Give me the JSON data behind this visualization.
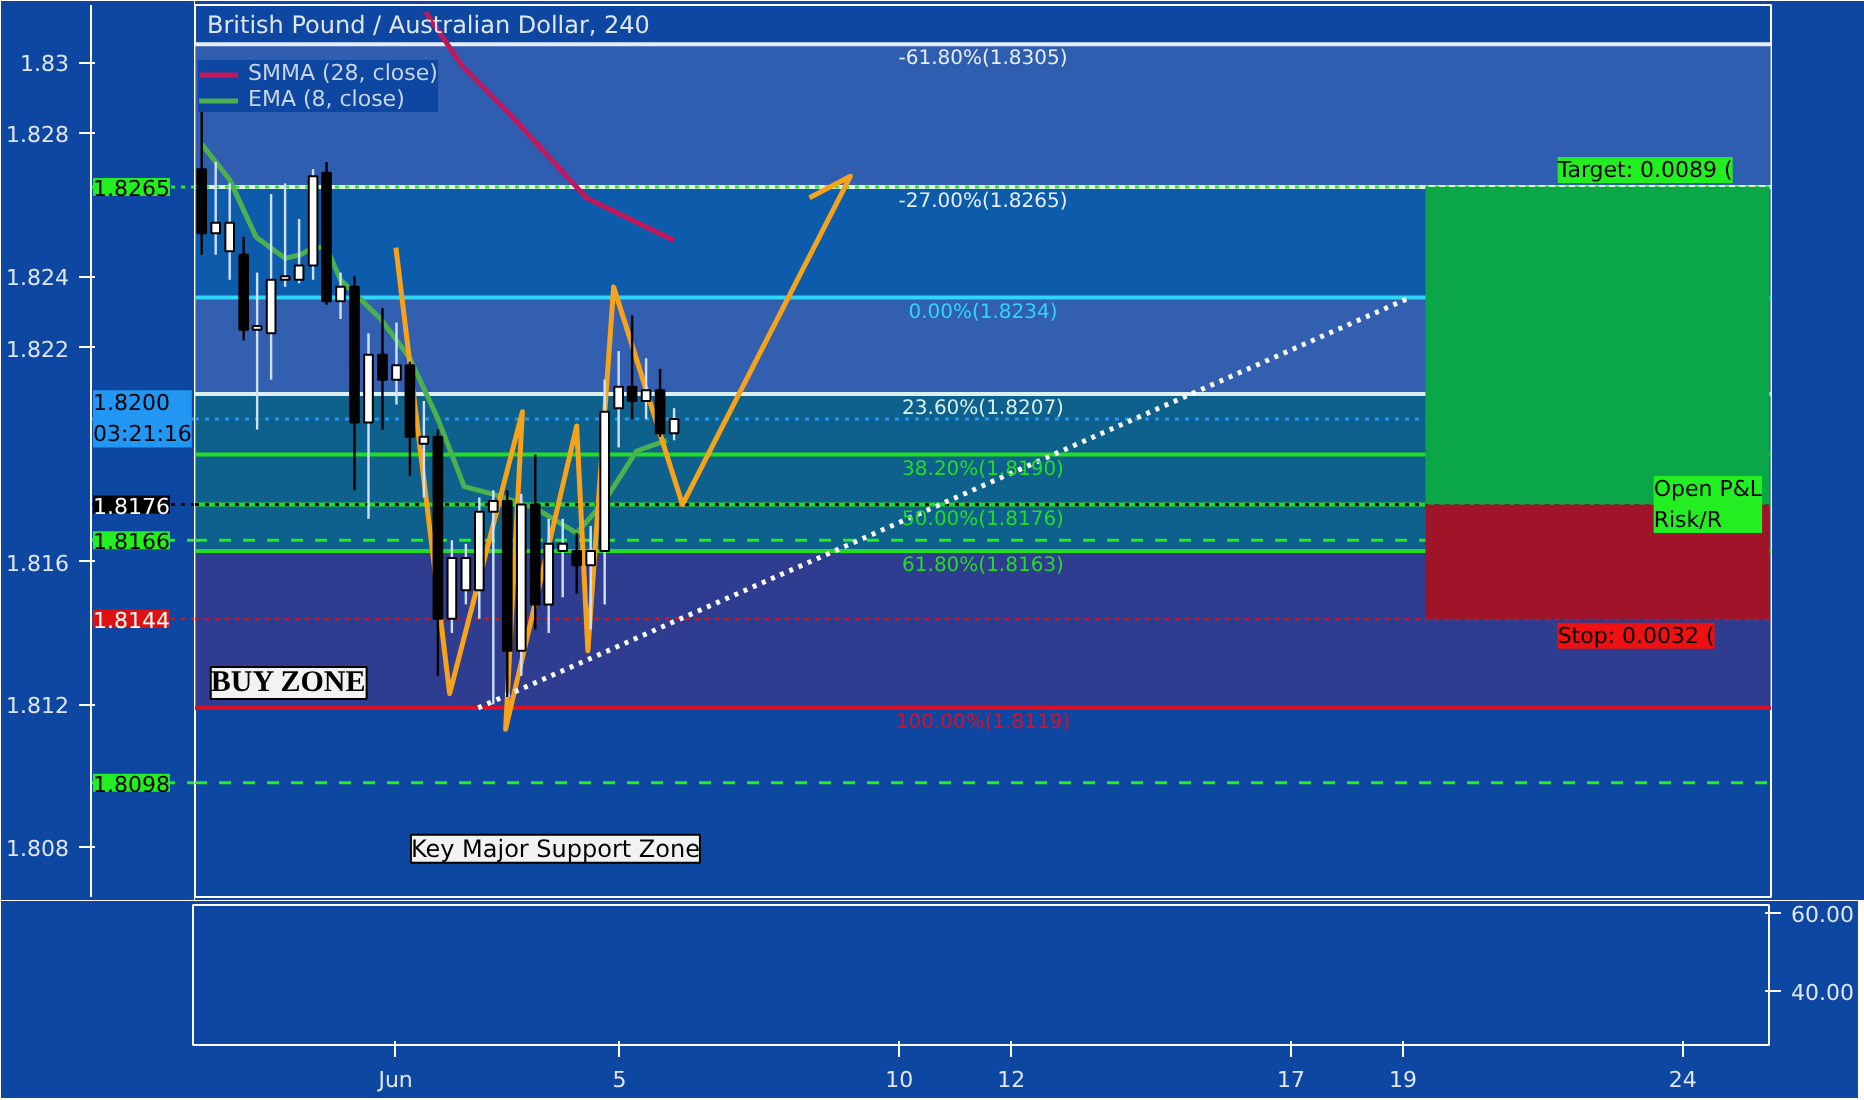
{
  "chart_data": [
    {
      "type": "candlestick",
      "title": "British Pound / Australian Dollar, 240",
      "x": [
        -2.5,
        -2.25,
        -2.0,
        -1.75,
        -1.51,
        -1.26,
        -1.01,
        -0.76,
        -0.51,
        -0.27,
        -0.02,
        0.23,
        0.48,
        0.73,
        0.98,
        1.22,
        1.47,
        1.72,
        1.97,
        2.22,
        2.46,
        2.71,
        2.96,
        3.21,
        3.46,
        3.7,
        3.95,
        4.2,
        4.45,
        4.7,
        4.95,
        5.19,
        5.44,
        5.69,
        5.94
      ],
      "ohlc": [
        [
          1.827,
          1.8288,
          1.8246,
          1.8252
        ],
        [
          1.8252,
          1.8272,
          1.8246,
          1.8255
        ],
        [
          1.8247,
          1.8266,
          1.8239,
          1.8255
        ],
        [
          1.8246,
          1.8251,
          1.8222,
          1.8225
        ],
        [
          1.8225,
          1.8241,
          1.8197,
          1.8226
        ],
        [
          1.8224,
          1.8263,
          1.8211,
          1.8239
        ],
        [
          1.8239,
          1.8266,
          1.8237,
          1.824
        ],
        [
          1.8239,
          1.8256,
          1.8238,
          1.8243
        ],
        [
          1.8243,
          1.827,
          1.8239,
          1.8268
        ],
        [
          1.8269,
          1.8272,
          1.8232,
          1.8233
        ],
        [
          1.8233,
          1.8241,
          1.8228,
          1.8237
        ],
        [
          1.8237,
          1.824,
          1.818,
          1.8199
        ],
        [
          1.8199,
          1.8224,
          1.8172,
          1.8218
        ],
        [
          1.8218,
          1.8231,
          1.8197,
          1.8211
        ],
        [
          1.8211,
          1.8227,
          1.8204,
          1.8215
        ],
        [
          1.8215,
          1.8216,
          1.8184,
          1.8195
        ],
        [
          1.8193,
          1.8205,
          1.8178,
          1.8195
        ],
        [
          1.8195,
          1.8197,
          1.8128,
          1.8144
        ],
        [
          1.8144,
          1.8166,
          1.814,
          1.8161
        ],
        [
          1.8152,
          1.8165,
          1.8148,
          1.8161
        ],
        [
          1.8152,
          1.8178,
          1.8144,
          1.8174
        ],
        [
          1.8174,
          1.818,
          1.812,
          1.8177
        ],
        [
          1.8177,
          1.818,
          1.8122,
          1.8135
        ],
        [
          1.8135,
          1.8179,
          1.8128,
          1.8176
        ],
        [
          1.8176,
          1.819,
          1.8141,
          1.8148
        ],
        [
          1.8148,
          1.8172,
          1.814,
          1.8165
        ],
        [
          1.8163,
          1.8172,
          1.815,
          1.8165
        ],
        [
          1.8163,
          1.8168,
          1.8151,
          1.8159
        ],
        [
          1.8159,
          1.817,
          1.8141,
          1.8163
        ],
        [
          1.8163,
          1.8211,
          1.8148,
          1.8202
        ],
        [
          1.8203,
          1.8219,
          1.8192,
          1.8209
        ],
        [
          1.8209,
          1.8229,
          1.82,
          1.8205
        ],
        [
          1.8205,
          1.8217,
          1.82,
          1.8208
        ],
        [
          1.8208,
          1.8214,
          1.8195,
          1.8196
        ],
        [
          1.8196,
          1.8203,
          1.8194,
          1.82
        ]
      ],
      "series": [
        {
          "type": "line",
          "name": "SMMA (28, close)",
          "color": "#c2185b",
          "x": [
            1.5,
            2.15,
            3.03,
            4.37,
            5.94
          ],
          "values": [
            1.8314,
            1.8299,
            1.8285,
            1.8262,
            1.825
          ]
        },
        {
          "type": "line",
          "name": "EMA (8, close)",
          "color": "#4caf50",
          "x": [
            -2.5,
            -2.0,
            -1.53,
            -1.01,
            -0.74,
            -0.51,
            -0.27,
            -0.02,
            0.7,
            1.22,
            1.72,
            2.19,
            2.69,
            3.46,
            4.2,
            4.7,
            5.27,
            5.81
          ],
          "values": [
            1.8277,
            1.8267,
            1.8251,
            1.8245,
            1.8246,
            1.8248,
            1.8248,
            1.8239,
            1.8228,
            1.8217,
            1.82,
            1.8181,
            1.8179,
            1.8175,
            1.8168,
            1.8177,
            1.8191,
            1.8194
          ]
        },
        {
          "type": "line",
          "color": "#f7a21b",
          "x": [
            0.97,
            1.93,
            3.23,
            2.93,
            4.2,
            4.4,
            4.86,
            6.09,
            9.09,
            8.36
          ],
          "values": [
            1.8248,
            1.8123,
            1.8202,
            1.8113,
            1.8198,
            1.8135,
            1.8237,
            1.8176,
            1.8268,
            1.8262
          ]
        },
        {
          "type": "line",
          "color": "#ffffff",
          "line_style": "dotted",
          "x": [
            2.44,
            19.09
          ],
          "values": [
            1.8119,
            1.8234
          ]
        },
        {
          "type": "bar",
          "color": "#0aa648",
          "x": [
            22.44
          ],
          "base": [
            1.8176
          ],
          "values": [
            0.0089
          ]
        },
        {
          "type": "bar",
          "color": "#a0142a",
          "x": [
            22.44
          ],
          "base": [
            1.8176
          ],
          "values": [
            -0.0032
          ]
        }
      ],
      "xlim": [
        -2.62,
        25.54
      ],
      "ylim": [
        1.8066,
        1.8316
      ],
      "yticks": [
        1.83,
        1.828,
        1.824,
        1.822,
        1.816,
        1.812,
        1.808
      ],
      "tick_labels": "y",
      "legend": "top left",
      "bands": [
        {
          "axis": "y",
          "from": 1.8265,
          "to": 1.8305,
          "color": "#3b64b6"
        },
        {
          "axis": "y",
          "from": 1.8234,
          "to": 1.8265,
          "color": "#0d63b0"
        },
        {
          "axis": "y",
          "from": 1.8207,
          "to": 1.8234,
          "color": "#3f67b5"
        },
        {
          "axis": "y",
          "from": 1.8163,
          "to": 1.8207,
          "color": "#0e6a86"
        },
        {
          "axis": "y",
          "from": 1.8119,
          "to": 1.8163,
          "color": "#3a3a8a"
        }
      ],
      "ref_lines": [
        {
          "axis": "y",
          "value": 1.8305,
          "label": "-61.80%(1.8305)",
          "color": "#e8eef8",
          "line_style": "solid"
        },
        {
          "axis": "y",
          "value": 1.8265,
          "label": "-27.00%(1.8265)",
          "color": "#e8eef8",
          "line_style": "solid"
        },
        {
          "axis": "y",
          "value": 1.8234,
          "label": "0.00%(1.8234)",
          "color": "#2fd6f5",
          "line_style": "solid"
        },
        {
          "axis": "y",
          "value": 1.8207,
          "label": "23.60%(1.8207)",
          "color": "#d8f0f0",
          "line_style": "solid"
        },
        {
          "axis": "y",
          "value": 1.819,
          "label": "38.20%(1.8190)",
          "color": "#22dd22",
          "line_style": "solid"
        },
        {
          "axis": "y",
          "value": 1.8176,
          "label": "50.00%(1.8176)",
          "color": "#22dd22",
          "line_style": "solid"
        },
        {
          "axis": "y",
          "value": 1.8163,
          "label": "61.80%(1.8163)",
          "color": "#22dd22",
          "line_style": "solid"
        },
        {
          "axis": "y",
          "value": 1.8119,
          "label": "100.00%(1.8119)",
          "color": "#d8102a",
          "line_style": "solid"
        },
        {
          "axis": "y",
          "value": 1.8265,
          "label": "1.8265",
          "color": "#22ee22",
          "line_style": "dotted"
        },
        {
          "axis": "y",
          "value": 1.82,
          "label": "1.8200\n03:21:16",
          "color": "#2196f3",
          "line_style": "dotted"
        },
        {
          "axis": "y",
          "value": 1.8176,
          "label": "1.8176",
          "color": "#000000",
          "line_style": "dotted"
        },
        {
          "axis": "y",
          "value": 1.8166,
          "label": "1.8166",
          "color": "#22ee22",
          "line_style": "dashed"
        },
        {
          "axis": "y",
          "value": 1.8144,
          "label": "1.8144",
          "color": "#dd1111",
          "line_style": "dotted"
        },
        {
          "axis": "y",
          "value": 1.8098,
          "label": "1.8098",
          "color": "#22ee22",
          "line_style": "dashed"
        }
      ],
      "annotations": [
        "BUY ZONE",
        "Key Major Support Zone",
        "Target: 0.0089 (",
        "Stop: 0.0032 (",
        "Open P&L\nRisk/R"
      ]
    },
    {
      "type": "line",
      "xlim": [
        -2.62,
        25.54
      ],
      "xticks": [
        {
          "value": 1,
          "label": "Jun"
        },
        5,
        10,
        12,
        17,
        19,
        24
      ],
      "ylim": [
        26.2,
        62.0
      ],
      "yticks": [
        {
          "value": 60,
          "label": "60.00"
        },
        {
          "value": 40,
          "label": "40.00"
        }
      ]
    }
  ]
}
